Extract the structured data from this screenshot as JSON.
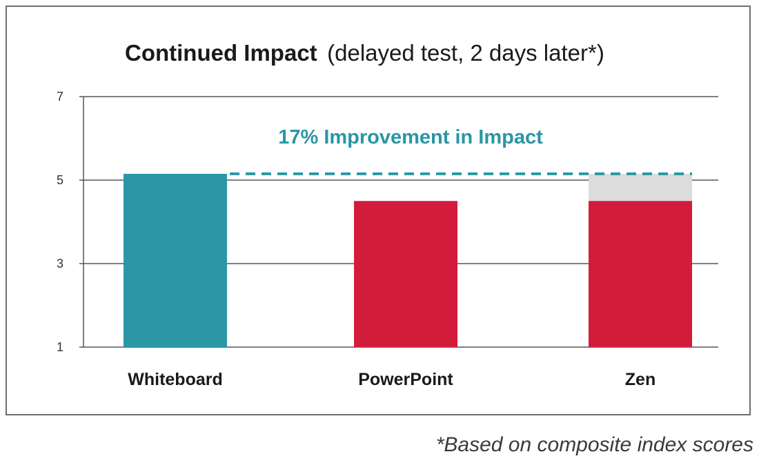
{
  "chart_data": {
    "type": "bar",
    "title": "Continued Impact",
    "subtitle": "(delayed test, 2 days later*)",
    "categories": [
      "Whiteboard",
      "PowerPoint",
      "Zen"
    ],
    "values": [
      5.15,
      4.5,
      4.5
    ],
    "stacked_extra": [
      0,
      0,
      0.65
    ],
    "bar_colors": [
      "#2a96a6",
      "#d31c3b",
      "#d31c3b"
    ],
    "extra_color": "#dcdcdc",
    "ylim": [
      1,
      7
    ],
    "yticks": [
      1,
      3,
      5,
      7
    ],
    "grid": true,
    "annotation": {
      "text": "17% Improvement in Impact",
      "reference_value": 5.15,
      "color": "#2a96a6"
    },
    "xlabel": "",
    "ylabel": ""
  },
  "footnote": "*Based on composite index scores"
}
